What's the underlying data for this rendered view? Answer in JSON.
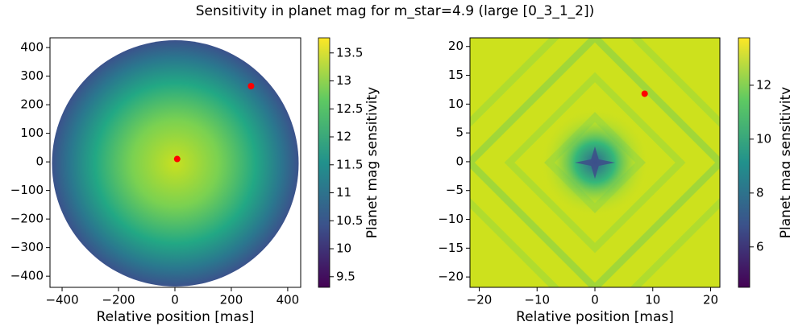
{
  "title": "Sensitivity in planet mag for m_star=4.9 (large [0_3_1_2])",
  "chart_data": [
    {
      "type": "heatmap",
      "xlabel": "Relative position [mas]",
      "xlim": [
        -443,
        446
      ],
      "ylim": [
        -439,
        434
      ],
      "xticks": [
        {
          "value": -400,
          "label": "−400"
        },
        {
          "value": -200,
          "label": "−200"
        },
        0,
        200,
        400
      ],
      "yticks": [
        {
          "value": -400,
          "label": "−400"
        },
        {
          "value": -300,
          "label": "−300"
        },
        {
          "value": -200,
          "label": "−200"
        },
        {
          "value": -100,
          "label": "−100"
        },
        0,
        100,
        200,
        300,
        400
      ],
      "points": {
        "x": [
          270,
          8
        ],
        "y": [
          265,
          10
        ],
        "color": "#ff0000"
      },
      "colorbar": {
        "label": "Planet mag sensitivity",
        "lim": [
          9.31,
          13.77
        ],
        "ticks": [
          9.5,
          10.0,
          10.5,
          11.0,
          11.5,
          12.0,
          12.5,
          13.0,
          13.5
        ]
      }
    },
    {
      "type": "heatmap",
      "xlabel": "Relative position [mas]",
      "xlim": [
        -21.6,
        21.6
      ],
      "ylim": [
        -21.8,
        21.5
      ],
      "xticks": [
        {
          "value": -20,
          "label": "−20"
        },
        {
          "value": -10,
          "label": "−10"
        },
        0,
        10,
        20
      ],
      "yticks": [
        {
          "value": -20,
          "label": "−20"
        },
        {
          "value": -15,
          "label": "−15"
        },
        {
          "value": -10,
          "label": "−10"
        },
        {
          "value": -5,
          "label": "−5"
        },
        0,
        5,
        10,
        15,
        20
      ],
      "points": {
        "x": [
          8.6
        ],
        "y": [
          11.8
        ],
        "color": "#ff0000"
      },
      "colorbar": {
        "label": "Planet mag sensitivity",
        "lim": [
          4.5,
          13.76
        ],
        "ticks": [
          6,
          8,
          10,
          12
        ]
      }
    }
  ]
}
